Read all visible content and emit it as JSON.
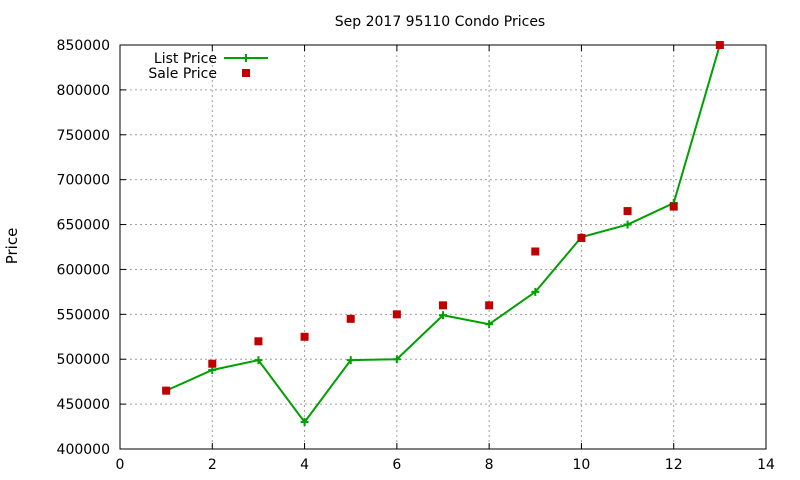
{
  "chart_data": {
    "type": "line",
    "title": "Sep 2017 95110 Condo Prices",
    "xlabel": "",
    "ylabel": "Price",
    "xlim": [
      0,
      14
    ],
    "ylim": [
      400000,
      850000
    ],
    "xticks": [
      0,
      2,
      4,
      6,
      8,
      10,
      12,
      14
    ],
    "yticks": [
      400000,
      450000,
      500000,
      550000,
      600000,
      650000,
      700000,
      750000,
      800000,
      850000
    ],
    "grid": true,
    "legend_position": "top-left",
    "series": [
      {
        "name": "List Price",
        "style": "line-with-plus-markers",
        "color": "#00a000",
        "x": [
          1,
          2,
          3,
          4,
          5,
          6,
          7,
          8,
          9,
          10,
          11,
          12,
          13
        ],
        "y": [
          465000,
          488000,
          499000,
          430000,
          499000,
          500000,
          549000,
          539000,
          575000,
          636000,
          650000,
          674000,
          850000
        ]
      },
      {
        "name": "Sale Price",
        "style": "square-markers",
        "color": "#c00000",
        "x": [
          1,
          2,
          3,
          4,
          5,
          6,
          7,
          8,
          9,
          10,
          11,
          12,
          13
        ],
        "y": [
          465000,
          495000,
          520000,
          525000,
          545000,
          550000,
          560000,
          560000,
          620000,
          635000,
          665000,
          670000,
          850000
        ]
      }
    ]
  }
}
